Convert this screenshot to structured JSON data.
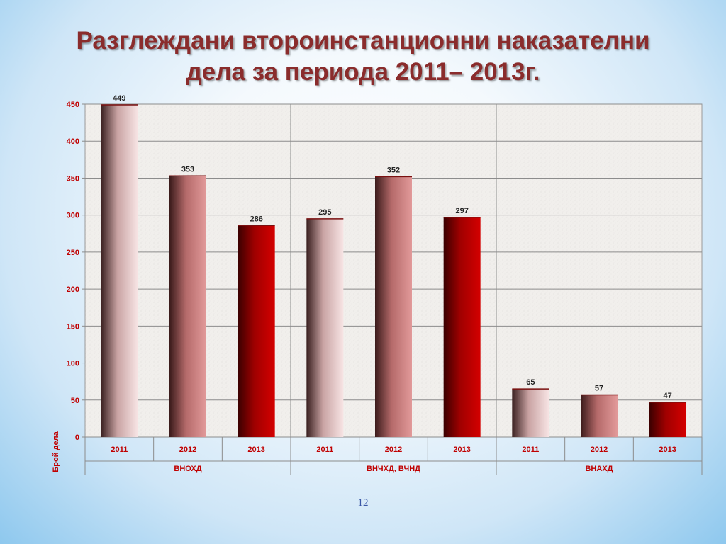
{
  "slide": {
    "title_line1": "Разглеждани второинстанционни наказателни",
    "title_line2": "дела за периода 2011– 2013г.",
    "page_number": "12"
  },
  "chart_data": {
    "type": "bar",
    "ylabel": "Брой дела",
    "ylim": [
      0,
      450
    ],
    "yticks": [
      0,
      50,
      100,
      150,
      200,
      250,
      300,
      350,
      400,
      450
    ],
    "grid": true,
    "groups": [
      {
        "name": "ВНОХД",
        "categories": [
          "2011",
          "2012",
          "2013"
        ],
        "values": [
          449,
          353,
          286
        ]
      },
      {
        "name": "ВНЧХД, ВЧНД",
        "categories": [
          "2011",
          "2012",
          "2013"
        ],
        "values": [
          295,
          352,
          297
        ]
      },
      {
        "name": "ВНАХД",
        "categories": [
          "2011",
          "2012",
          "2013"
        ],
        "values": [
          65,
          57,
          47
        ]
      }
    ],
    "colors": {
      "2011": "#f2d6d6",
      "2012": "#d88a8a",
      "2013": "#c00000",
      "label_text": "#c00000",
      "plot_bg": "#f1efec"
    }
  }
}
